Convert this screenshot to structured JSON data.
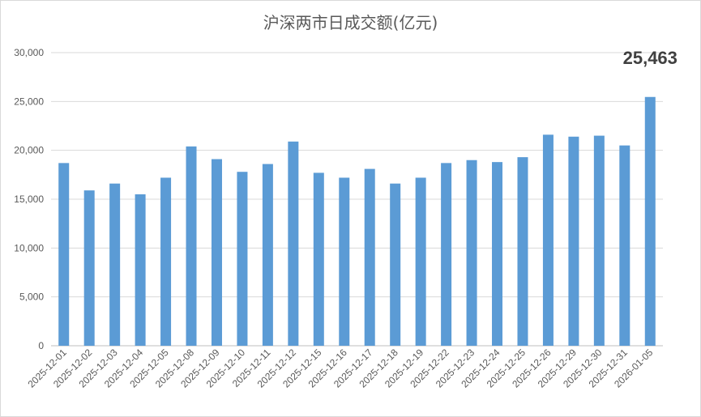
{
  "chart_data": {
    "type": "bar",
    "title": "沪深两市日成交额(亿元)",
    "xlabel": "",
    "ylabel": "",
    "ylim": [
      0,
      30000
    ],
    "yticks": [
      0,
      5000,
      10000,
      15000,
      20000,
      25000,
      30000
    ],
    "ytick_labels": [
      "0",
      "5,000",
      "10,000",
      "15,000",
      "20,000",
      "25,000",
      "30,000"
    ],
    "categories": [
      "2025-12-01",
      "2025-12-02",
      "2025-12-03",
      "2025-12-04",
      "2025-12-05",
      "2025-12-08",
      "2025-12-09",
      "2025-12-10",
      "2025-12-11",
      "2025-12-12",
      "2025-12-15",
      "2025-12-16",
      "2025-12-17",
      "2025-12-18",
      "2025-12-19",
      "2025-12-22",
      "2025-12-23",
      "2025-12-24",
      "2025-12-25",
      "2025-12-26",
      "2025-12-29",
      "2025-12-30",
      "2025-12-31",
      "2026-01-05"
    ],
    "values": [
      18700,
      15900,
      16600,
      15500,
      17200,
      20400,
      19100,
      17800,
      18600,
      20900,
      17700,
      17200,
      18100,
      16600,
      17200,
      18700,
      19000,
      18800,
      19300,
      21600,
      21400,
      21500,
      20500,
      25463
    ],
    "bar_color": "#5b9bd5",
    "grid": true,
    "annotation": {
      "category": "2026-01-05",
      "text": "25,463"
    }
  }
}
